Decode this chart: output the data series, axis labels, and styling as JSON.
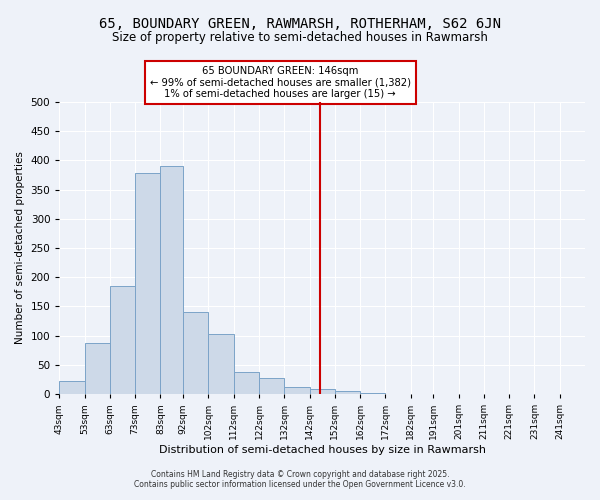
{
  "title": "65, BOUNDARY GREEN, RAWMARSH, ROTHERHAM, S62 6JN",
  "subtitle": "Size of property relative to semi-detached houses in Rawmarsh",
  "xlabel": "Distribution of semi-detached houses by size in Rawmarsh",
  "ylabel": "Number of semi-detached properties",
  "bar_values": [
    22,
    88,
    185,
    378,
    390,
    140,
    103,
    38,
    27,
    12,
    8,
    5,
    2,
    0,
    0,
    0,
    0,
    0,
    0,
    0
  ],
  "bin_labels": [
    "43sqm",
    "53sqm",
    "63sqm",
    "73sqm",
    "83sqm",
    "92sqm",
    "102sqm",
    "112sqm",
    "122sqm",
    "132sqm",
    "142sqm",
    "152sqm",
    "162sqm",
    "172sqm",
    "182sqm",
    "191sqm",
    "201sqm",
    "211sqm",
    "221sqm",
    "231sqm",
    "241sqm"
  ],
  "bin_edges": [
    43,
    53,
    63,
    73,
    83,
    92,
    102,
    112,
    122,
    132,
    142,
    152,
    162,
    172,
    182,
    191,
    201,
    211,
    221,
    231,
    241
  ],
  "bar_color": "#cdd9e8",
  "bar_edge_color": "#7ba3c8",
  "property_line_x": 146,
  "property_line_color": "#cc0000",
  "annotation_title": "65 BOUNDARY GREEN: 146sqm",
  "annotation_line1": "← 99% of semi-detached houses are smaller (1,382)",
  "annotation_line2": "1% of semi-detached houses are larger (15) →",
  "annotation_box_color": "#cc0000",
  "ylim": [
    0,
    500
  ],
  "yticks": [
    0,
    50,
    100,
    150,
    200,
    250,
    300,
    350,
    400,
    450,
    500
  ],
  "footnote1": "Contains HM Land Registry data © Crown copyright and database right 2025.",
  "footnote2": "Contains public sector information licensed under the Open Government Licence v3.0.",
  "background_color": "#eef2f9"
}
